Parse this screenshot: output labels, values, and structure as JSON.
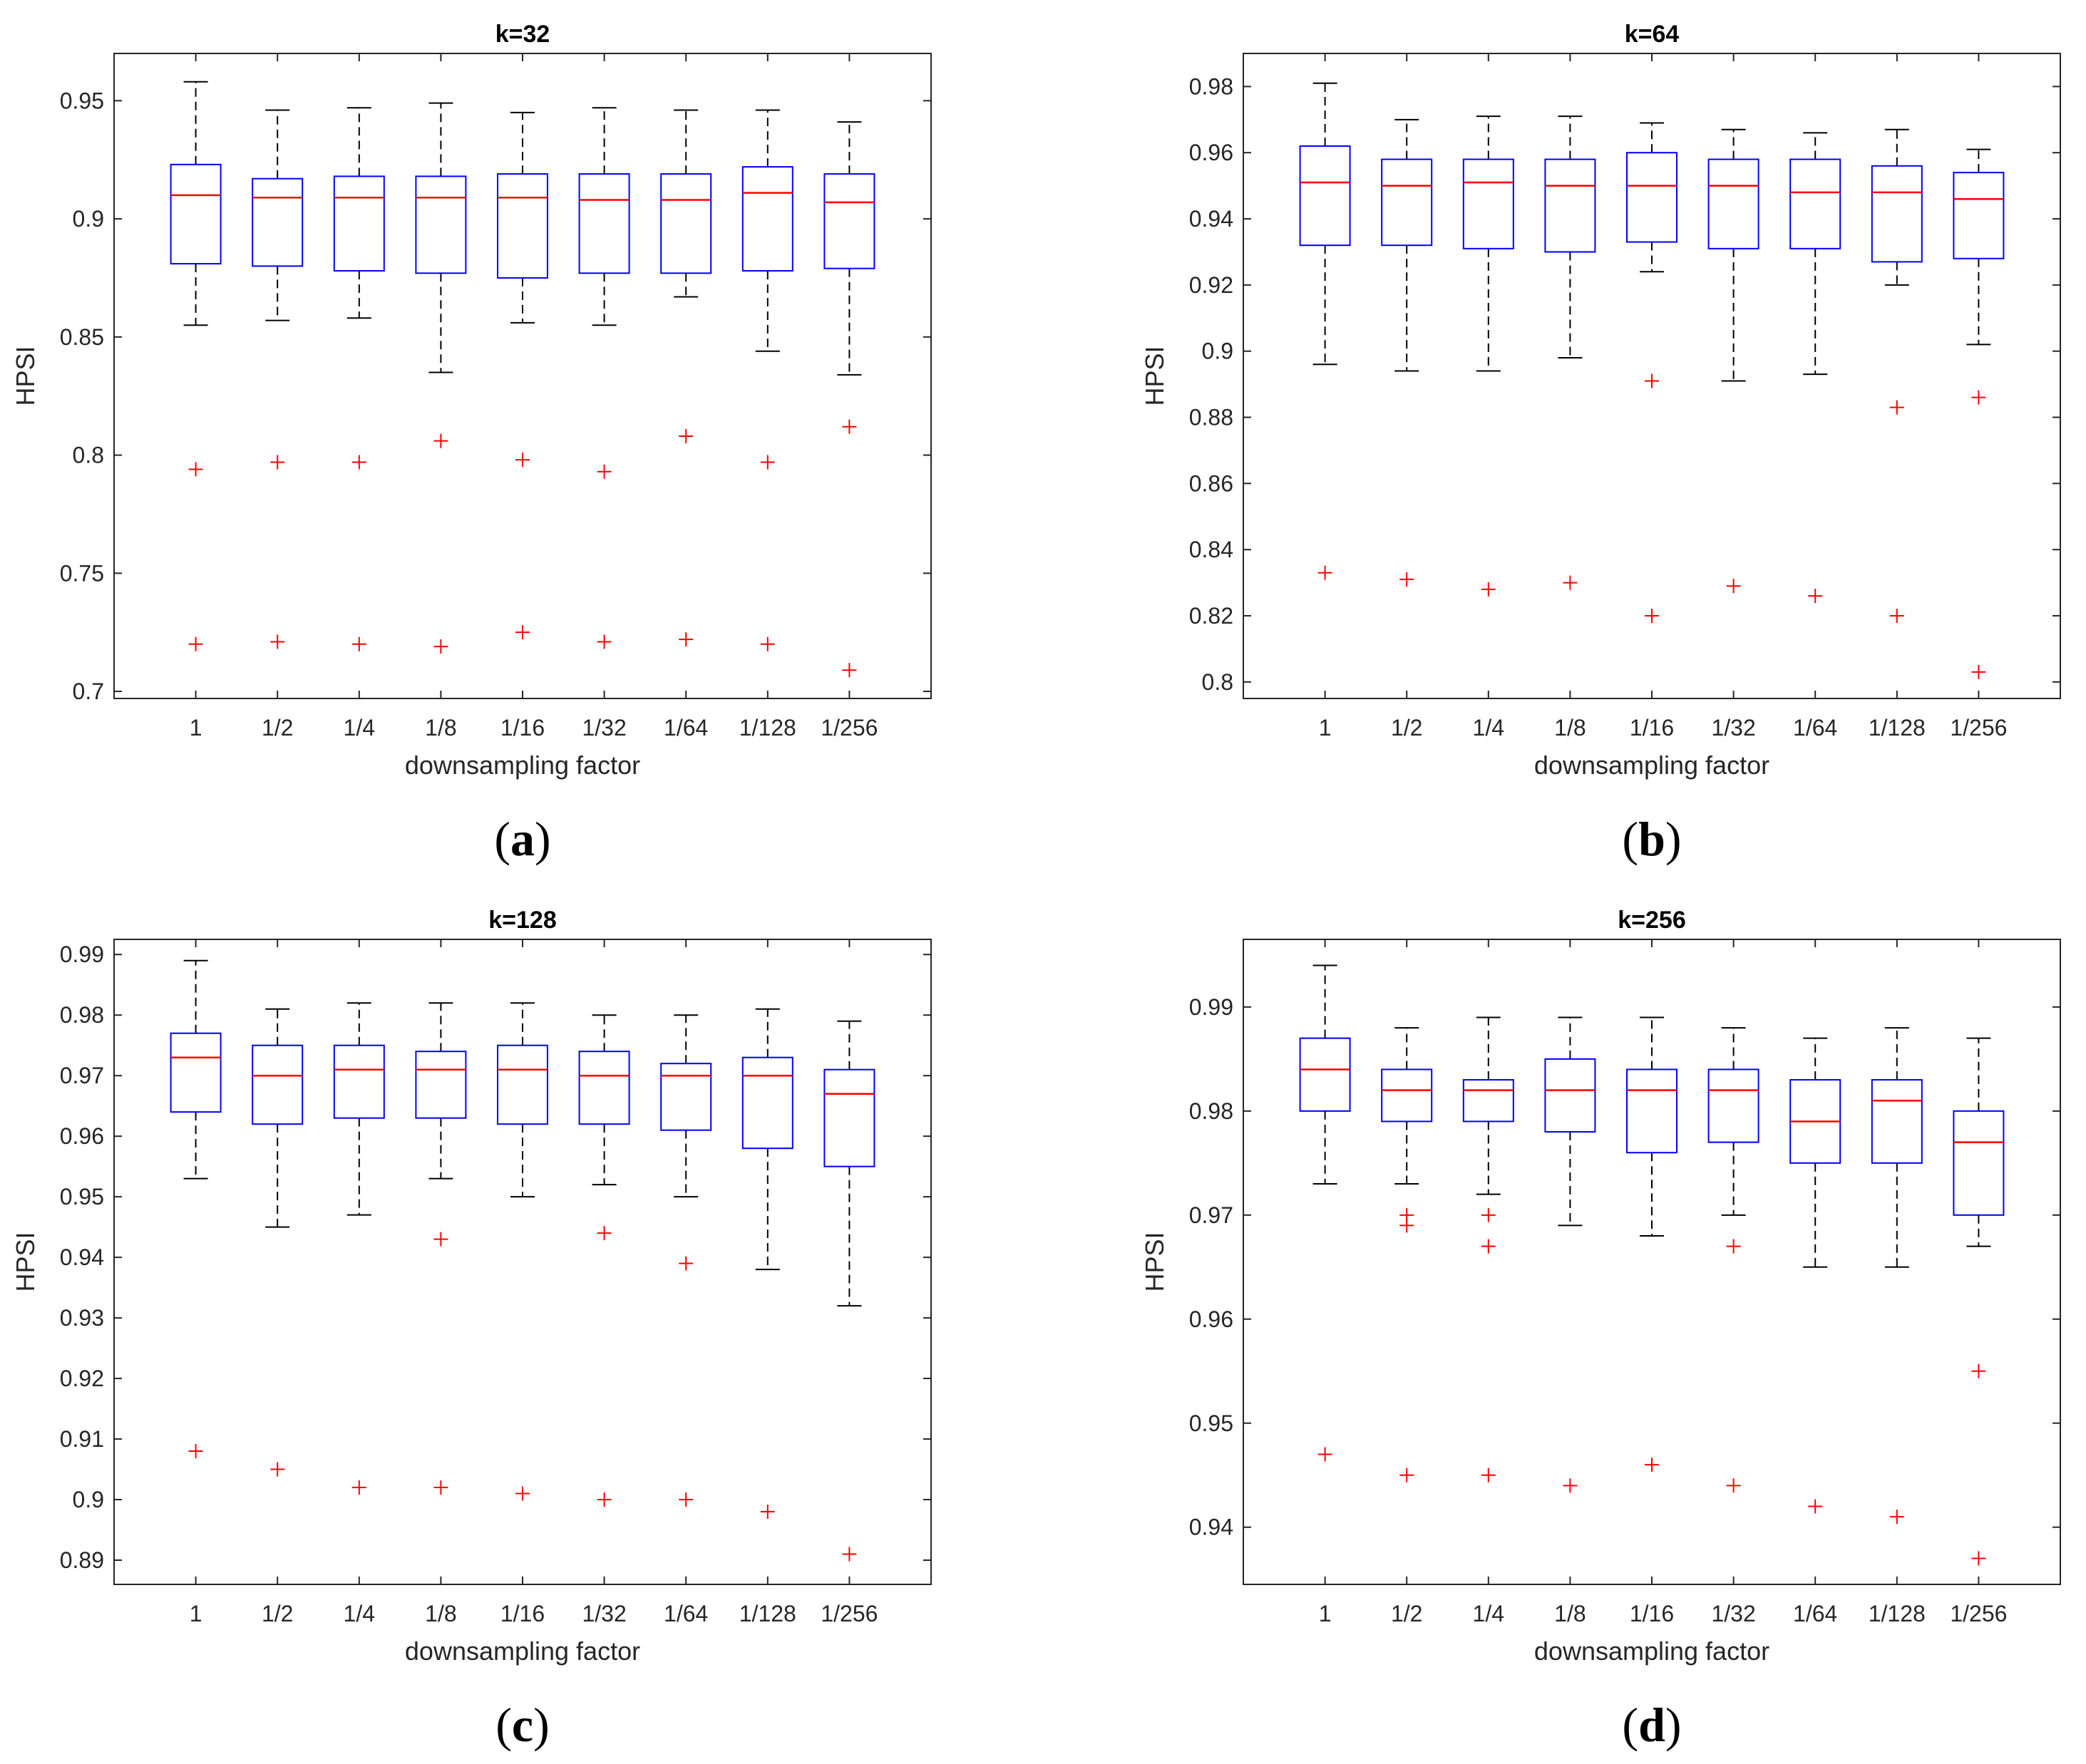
{
  "figure": {
    "colors": {
      "box": "#0000ff",
      "median": "#ff0000",
      "outlier": "#ff0000",
      "whisker": "#000000",
      "axes": "#262626"
    }
  },
  "chart_data": [
    {
      "type": "box",
      "panel_label": "a",
      "title": "k=32",
      "xlabel": "downsampling factor",
      "ylabel": "HPSI",
      "ylim": [
        0.697,
        0.97
      ],
      "yticks": [
        0.7,
        0.75,
        0.8,
        0.85,
        0.9,
        0.95
      ],
      "ytick_labels": [
        "0.7",
        "0.75",
        "0.8",
        "0.85",
        "0.9",
        "0.95"
      ],
      "categories": [
        "1",
        "1/2",
        "1/4",
        "1/8",
        "1/16",
        "1/32",
        "1/64",
        "1/128",
        "1/256"
      ],
      "boxes": [
        {
          "whisker_low": 0.855,
          "q1": 0.881,
          "median": 0.91,
          "q3": 0.923,
          "whisker_high": 0.958,
          "outliers": [
            0.794,
            0.72
          ]
        },
        {
          "whisker_low": 0.857,
          "q1": 0.88,
          "median": 0.909,
          "q3": 0.917,
          "whisker_high": 0.946,
          "outliers": [
            0.797,
            0.721
          ]
        },
        {
          "whisker_low": 0.858,
          "q1": 0.878,
          "median": 0.909,
          "q3": 0.918,
          "whisker_high": 0.947,
          "outliers": [
            0.797,
            0.72
          ]
        },
        {
          "whisker_low": 0.835,
          "q1": 0.877,
          "median": 0.909,
          "q3": 0.918,
          "whisker_high": 0.949,
          "outliers": [
            0.806,
            0.719
          ]
        },
        {
          "whisker_low": 0.856,
          "q1": 0.875,
          "median": 0.909,
          "q3": 0.919,
          "whisker_high": 0.945,
          "outliers": [
            0.798,
            0.725
          ]
        },
        {
          "whisker_low": 0.855,
          "q1": 0.877,
          "median": 0.908,
          "q3": 0.919,
          "whisker_high": 0.947,
          "outliers": [
            0.793,
            0.721
          ]
        },
        {
          "whisker_low": 0.867,
          "q1": 0.877,
          "median": 0.908,
          "q3": 0.919,
          "whisker_high": 0.946,
          "outliers": [
            0.808,
            0.722
          ]
        },
        {
          "whisker_low": 0.844,
          "q1": 0.878,
          "median": 0.911,
          "q3": 0.922,
          "whisker_high": 0.946,
          "outliers": [
            0.797,
            0.72
          ]
        },
        {
          "whisker_low": 0.834,
          "q1": 0.879,
          "median": 0.907,
          "q3": 0.919,
          "whisker_high": 0.941,
          "outliers": [
            0.812,
            0.709
          ]
        }
      ]
    },
    {
      "type": "box",
      "panel_label": "b",
      "title": "k=64",
      "xlabel": "downsampling factor",
      "ylabel": "HPSI",
      "ylim": [
        0.795,
        0.99
      ],
      "yticks": [
        0.8,
        0.82,
        0.84,
        0.86,
        0.88,
        0.9,
        0.92,
        0.94,
        0.96,
        0.98
      ],
      "ytick_labels": [
        "0.8",
        "0.82",
        "0.84",
        "0.86",
        "0.88",
        "0.9",
        "0.92",
        "0.94",
        "0.96",
        "0.98"
      ],
      "categories": [
        "1",
        "1/2",
        "1/4",
        "1/8",
        "1/16",
        "1/32",
        "1/64",
        "1/128",
        "1/256"
      ],
      "boxes": [
        {
          "whisker_low": 0.896,
          "q1": 0.932,
          "median": 0.951,
          "q3": 0.962,
          "whisker_high": 0.981,
          "outliers": [
            0.833
          ]
        },
        {
          "whisker_low": 0.894,
          "q1": 0.932,
          "median": 0.95,
          "q3": 0.958,
          "whisker_high": 0.97,
          "outliers": [
            0.831
          ]
        },
        {
          "whisker_low": 0.894,
          "q1": 0.931,
          "median": 0.951,
          "q3": 0.958,
          "whisker_high": 0.971,
          "outliers": [
            0.828
          ]
        },
        {
          "whisker_low": 0.898,
          "q1": 0.93,
          "median": 0.95,
          "q3": 0.958,
          "whisker_high": 0.971,
          "outliers": [
            0.83
          ]
        },
        {
          "whisker_low": 0.924,
          "q1": 0.933,
          "median": 0.95,
          "q3": 0.96,
          "whisker_high": 0.969,
          "outliers": [
            0.891,
            0.82
          ]
        },
        {
          "whisker_low": 0.891,
          "q1": 0.931,
          "median": 0.95,
          "q3": 0.958,
          "whisker_high": 0.967,
          "outliers": [
            0.829
          ]
        },
        {
          "whisker_low": 0.893,
          "q1": 0.931,
          "median": 0.948,
          "q3": 0.958,
          "whisker_high": 0.966,
          "outliers": [
            0.826
          ]
        },
        {
          "whisker_low": 0.92,
          "q1": 0.927,
          "median": 0.948,
          "q3": 0.956,
          "whisker_high": 0.967,
          "outliers": [
            0.883,
            0.82
          ]
        },
        {
          "whisker_low": 0.902,
          "q1": 0.928,
          "median": 0.946,
          "q3": 0.954,
          "whisker_high": 0.961,
          "outliers": [
            0.886,
            0.803
          ]
        }
      ]
    },
    {
      "type": "box",
      "panel_label": "c",
      "title": "k=128",
      "xlabel": "downsampling factor",
      "ylabel": "HPSI",
      "ylim": [
        0.886,
        0.9925
      ],
      "yticks": [
        0.89,
        0.9,
        0.91,
        0.92,
        0.93,
        0.94,
        0.95,
        0.96,
        0.97,
        0.98,
        0.99
      ],
      "ytick_labels": [
        "0.89",
        "0.9",
        "0.91",
        "0.92",
        "0.93",
        "0.94",
        "0.95",
        "0.96",
        "0.97",
        "0.98",
        "0.99"
      ],
      "categories": [
        "1",
        "1/2",
        "1/4",
        "1/8",
        "1/16",
        "1/32",
        "1/64",
        "1/128",
        "1/256"
      ],
      "boxes": [
        {
          "whisker_low": 0.953,
          "q1": 0.964,
          "median": 0.973,
          "q3": 0.977,
          "whisker_high": 0.989,
          "outliers": [
            0.908
          ]
        },
        {
          "whisker_low": 0.945,
          "q1": 0.962,
          "median": 0.97,
          "q3": 0.975,
          "whisker_high": 0.981,
          "outliers": [
            0.905
          ]
        },
        {
          "whisker_low": 0.947,
          "q1": 0.963,
          "median": 0.971,
          "q3": 0.975,
          "whisker_high": 0.982,
          "outliers": [
            0.902
          ]
        },
        {
          "whisker_low": 0.953,
          "q1": 0.963,
          "median": 0.971,
          "q3": 0.974,
          "whisker_high": 0.982,
          "outliers": [
            0.943,
            0.902
          ]
        },
        {
          "whisker_low": 0.95,
          "q1": 0.962,
          "median": 0.971,
          "q3": 0.975,
          "whisker_high": 0.982,
          "outliers": [
            0.901
          ]
        },
        {
          "whisker_low": 0.952,
          "q1": 0.962,
          "median": 0.97,
          "q3": 0.974,
          "whisker_high": 0.98,
          "outliers": [
            0.944,
            0.9
          ]
        },
        {
          "whisker_low": 0.95,
          "q1": 0.961,
          "median": 0.97,
          "q3": 0.972,
          "whisker_high": 0.98,
          "outliers": [
            0.939,
            0.9
          ]
        },
        {
          "whisker_low": 0.938,
          "q1": 0.958,
          "median": 0.97,
          "q3": 0.973,
          "whisker_high": 0.981,
          "outliers": [
            0.898
          ]
        },
        {
          "whisker_low": 0.932,
          "q1": 0.955,
          "median": 0.967,
          "q3": 0.971,
          "whisker_high": 0.979,
          "outliers": [
            0.891
          ]
        }
      ]
    },
    {
      "type": "box",
      "panel_label": "d",
      "title": "k=256",
      "xlabel": "downsampling factor",
      "ylabel": "HPSI",
      "ylim": [
        0.9345,
        0.9965
      ],
      "yticks": [
        0.94,
        0.95,
        0.96,
        0.97,
        0.98,
        0.99
      ],
      "ytick_labels": [
        "0.94",
        "0.95",
        "0.96",
        "0.97",
        "0.98",
        "0.99"
      ],
      "categories": [
        "1",
        "1/2",
        "1/4",
        "1/8",
        "1/16",
        "1/32",
        "1/64",
        "1/128",
        "1/256"
      ],
      "boxes": [
        {
          "whisker_low": 0.973,
          "q1": 0.98,
          "median": 0.984,
          "q3": 0.987,
          "whisker_high": 0.994,
          "outliers": [
            0.947
          ]
        },
        {
          "whisker_low": 0.973,
          "q1": 0.979,
          "median": 0.982,
          "q3": 0.984,
          "whisker_high": 0.988,
          "outliers": [
            0.97,
            0.969,
            0.945
          ]
        },
        {
          "whisker_low": 0.972,
          "q1": 0.979,
          "median": 0.982,
          "q3": 0.983,
          "whisker_high": 0.989,
          "outliers": [
            0.97,
            0.967,
            0.945
          ]
        },
        {
          "whisker_low": 0.969,
          "q1": 0.978,
          "median": 0.982,
          "q3": 0.985,
          "whisker_high": 0.989,
          "outliers": [
            0.944
          ]
        },
        {
          "whisker_low": 0.968,
          "q1": 0.976,
          "median": 0.982,
          "q3": 0.984,
          "whisker_high": 0.989,
          "outliers": [
            0.946
          ]
        },
        {
          "whisker_low": 0.97,
          "q1": 0.977,
          "median": 0.982,
          "q3": 0.984,
          "whisker_high": 0.988,
          "outliers": [
            0.967,
            0.944
          ]
        },
        {
          "whisker_low": 0.965,
          "q1": 0.975,
          "median": 0.979,
          "q3": 0.983,
          "whisker_high": 0.987,
          "outliers": [
            0.942
          ]
        },
        {
          "whisker_low": 0.965,
          "q1": 0.975,
          "median": 0.981,
          "q3": 0.983,
          "whisker_high": 0.988,
          "outliers": [
            0.941
          ]
        },
        {
          "whisker_low": 0.967,
          "q1": 0.97,
          "median": 0.977,
          "q3": 0.98,
          "whisker_high": 0.987,
          "outliers": [
            0.955,
            0.937
          ]
        }
      ]
    }
  ]
}
